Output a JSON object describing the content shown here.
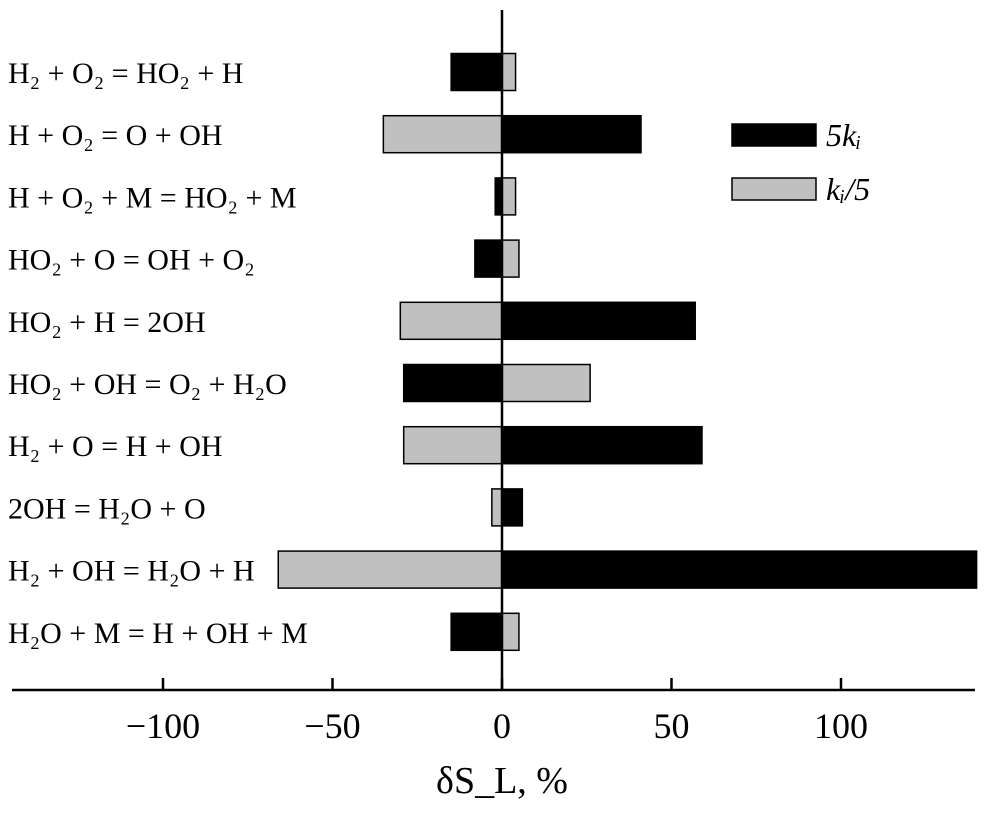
{
  "chart_data": {
    "type": "bar",
    "orientation": "horizontal",
    "categories": [
      "H₂ + O₂ = HO₂ + H",
      "H + O₂ = O + OH",
      "H + O₂ + M = HO₂ + M",
      "HO₂ + O = OH + O₂",
      "HO₂ + H = 2OH",
      "HO₂ + OH = O₂ + H₂O",
      "H₂ + O = H + OH",
      "2OH = H₂O + O",
      "H₂ + OH = H₂O + H",
      "H₂O + M = H + OH + M"
    ],
    "series": [
      {
        "name": "5kᵢ",
        "color": "#000000",
        "values": [
          -15,
          41,
          -2,
          -8,
          57,
          -29,
          59,
          6,
          140,
          -15
        ]
      },
      {
        "name": "kᵢ/5",
        "color": "#c0c0c0",
        "values": [
          4,
          -35,
          4,
          5,
          -30,
          26,
          -29,
          -3,
          -66,
          5
        ]
      }
    ],
    "xlabel": "δS_L, %",
    "xticks": [
      -100,
      -50,
      0,
      50,
      100
    ],
    "xtick_labels": [
      "−100",
      "−50",
      "0",
      "50",
      "100"
    ],
    "xlim": [
      -145,
      140
    ],
    "grid": false,
    "legend_position": "top-right"
  }
}
